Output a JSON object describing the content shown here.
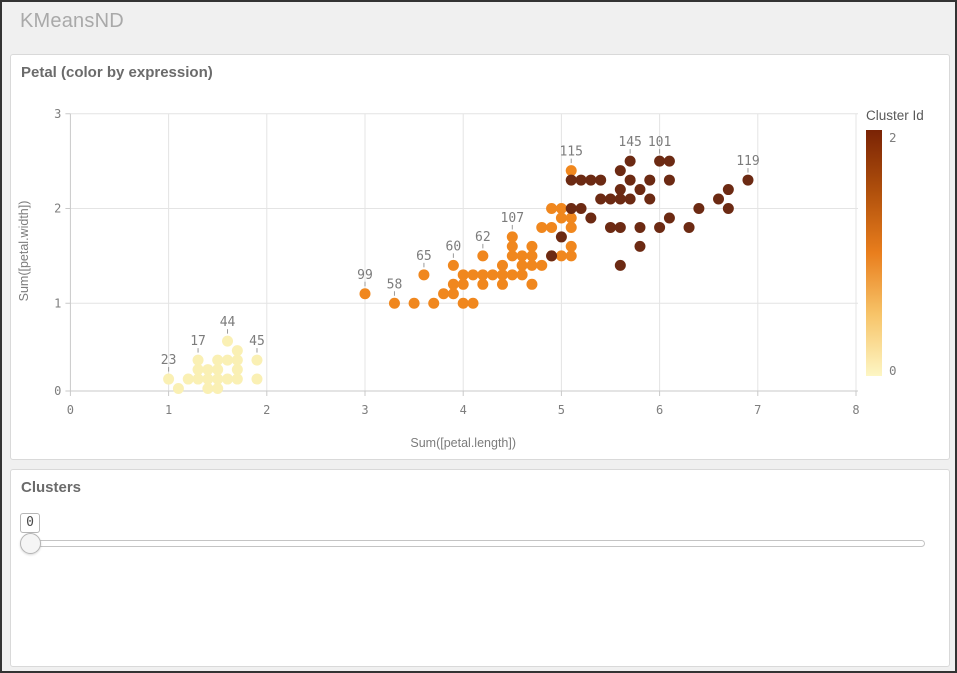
{
  "window": {
    "title": "KMeansND"
  },
  "chart_panel": {
    "title": "Petal (color by expression)"
  },
  "clusters_panel": {
    "title": "Clusters",
    "slider": {
      "value": "0"
    }
  },
  "chart_data": {
    "type": "scatter",
    "title": "Petal (color by expression)",
    "xlabel": "Sum([petal.length])",
    "ylabel": "Sum([petal.width])",
    "xlim": [
      0,
      8
    ],
    "ylim": [
      0,
      3
    ],
    "xticks": [
      "0",
      "1",
      "2",
      "3",
      "4",
      "5",
      "6",
      "7",
      "8"
    ],
    "yticks": [
      "0",
      "1",
      "2",
      "3"
    ],
    "grid": true,
    "legend": {
      "title": "Cluster Id",
      "position": "right",
      "top_label": "2",
      "bottom_label": "0",
      "gradient_colors": [
        "#7a2305",
        "#b0500c",
        "#e97e1d",
        "#f7c469",
        "#fdf6c4"
      ]
    },
    "cluster_colors": [
      "#faf0b4",
      "#f0871e",
      "#6c2a13"
    ],
    "series": [
      {
        "name": "cluster-0",
        "cluster_id": 0,
        "points": [
          [
            1.0,
            0.2
          ],
          [
            1.1,
            0.1
          ],
          [
            1.2,
            0.2
          ],
          [
            1.3,
            0.2
          ],
          [
            1.3,
            0.3
          ],
          [
            1.3,
            0.4
          ],
          [
            1.4,
            0.1
          ],
          [
            1.4,
            0.2
          ],
          [
            1.4,
            0.3
          ],
          [
            1.5,
            0.1
          ],
          [
            1.5,
            0.2
          ],
          [
            1.5,
            0.3
          ],
          [
            1.5,
            0.4
          ],
          [
            1.6,
            0.2
          ],
          [
            1.6,
            0.4
          ],
          [
            1.6,
            0.6
          ],
          [
            1.7,
            0.2
          ],
          [
            1.7,
            0.3
          ],
          [
            1.7,
            0.4
          ],
          [
            1.7,
            0.5
          ],
          [
            1.9,
            0.2
          ],
          [
            1.9,
            0.4
          ]
        ]
      },
      {
        "name": "cluster-1",
        "cluster_id": 1,
        "points": [
          [
            3.0,
            1.1
          ],
          [
            3.3,
            1.0
          ],
          [
            3.5,
            1.0
          ],
          [
            3.6,
            1.3
          ],
          [
            3.7,
            1.0
          ],
          [
            3.8,
            1.1
          ],
          [
            3.9,
            1.1
          ],
          [
            3.9,
            1.2
          ],
          [
            3.9,
            1.4
          ],
          [
            4.0,
            1.0
          ],
          [
            4.0,
            1.2
          ],
          [
            4.0,
            1.3
          ],
          [
            4.1,
            1.0
          ],
          [
            4.1,
            1.3
          ],
          [
            4.2,
            1.2
          ],
          [
            4.2,
            1.3
          ],
          [
            4.2,
            1.5
          ],
          [
            4.3,
            1.3
          ],
          [
            4.4,
            1.2
          ],
          [
            4.4,
            1.3
          ],
          [
            4.4,
            1.4
          ],
          [
            4.5,
            1.3
          ],
          [
            4.5,
            1.5
          ],
          [
            4.5,
            1.6
          ],
          [
            4.5,
            1.7
          ],
          [
            4.6,
            1.3
          ],
          [
            4.6,
            1.4
          ],
          [
            4.6,
            1.5
          ],
          [
            4.7,
            1.2
          ],
          [
            4.7,
            1.4
          ],
          [
            4.7,
            1.5
          ],
          [
            4.7,
            1.6
          ],
          [
            4.8,
            1.4
          ],
          [
            4.8,
            1.8
          ],
          [
            4.9,
            1.5
          ],
          [
            4.9,
            1.8
          ],
          [
            4.9,
            2.0
          ],
          [
            5.0,
            1.5
          ],
          [
            5.0,
            1.9
          ],
          [
            5.0,
            2.0
          ],
          [
            5.1,
            1.5
          ],
          [
            5.1,
            1.6
          ],
          [
            5.1,
            1.8
          ],
          [
            5.1,
            1.9
          ],
          [
            5.1,
            2.4
          ]
        ]
      },
      {
        "name": "cluster-2",
        "cluster_id": 2,
        "points": [
          [
            4.9,
            1.5
          ],
          [
            5.0,
            1.7
          ],
          [
            5.1,
            2.0
          ],
          [
            5.1,
            2.3
          ],
          [
            5.2,
            2.0
          ],
          [
            5.2,
            2.3
          ],
          [
            5.3,
            1.9
          ],
          [
            5.3,
            2.3
          ],
          [
            5.4,
            2.1
          ],
          [
            5.4,
            2.3
          ],
          [
            5.5,
            1.8
          ],
          [
            5.5,
            2.1
          ],
          [
            5.6,
            1.4
          ],
          [
            5.6,
            1.8
          ],
          [
            5.6,
            2.1
          ],
          [
            5.6,
            2.2
          ],
          [
            5.6,
            2.4
          ],
          [
            5.7,
            2.1
          ],
          [
            5.7,
            2.3
          ],
          [
            5.7,
            2.5
          ],
          [
            5.8,
            1.6
          ],
          [
            5.8,
            1.8
          ],
          [
            5.8,
            2.2
          ],
          [
            5.9,
            2.1
          ],
          [
            5.9,
            2.3
          ],
          [
            6.0,
            1.8
          ],
          [
            6.0,
            2.5
          ],
          [
            6.1,
            1.9
          ],
          [
            6.1,
            2.3
          ],
          [
            6.1,
            2.5
          ],
          [
            6.3,
            1.8
          ],
          [
            6.4,
            2.0
          ],
          [
            6.6,
            2.1
          ],
          [
            6.7,
            2.0
          ],
          [
            6.7,
            2.2
          ],
          [
            6.9,
            2.3
          ]
        ]
      }
    ],
    "point_labels": [
      {
        "text": "23",
        "x": 1.0,
        "y": 0.2
      },
      {
        "text": "17",
        "x": 1.3,
        "y": 0.4
      },
      {
        "text": "44",
        "x": 1.6,
        "y": 0.6
      },
      {
        "text": "45",
        "x": 1.9,
        "y": 0.4
      },
      {
        "text": "99",
        "x": 3.0,
        "y": 1.1
      },
      {
        "text": "58",
        "x": 3.3,
        "y": 1.0
      },
      {
        "text": "65",
        "x": 3.6,
        "y": 1.3
      },
      {
        "text": "60",
        "x": 3.9,
        "y": 1.4
      },
      {
        "text": "62",
        "x": 4.2,
        "y": 1.5
      },
      {
        "text": "107",
        "x": 4.5,
        "y": 1.7
      },
      {
        "text": "115",
        "x": 5.1,
        "y": 2.4
      },
      {
        "text": "145",
        "x": 5.7,
        "y": 2.5
      },
      {
        "text": "101",
        "x": 6.0,
        "y": 2.5
      },
      {
        "text": "119",
        "x": 6.9,
        "y": 2.3
      }
    ]
  }
}
